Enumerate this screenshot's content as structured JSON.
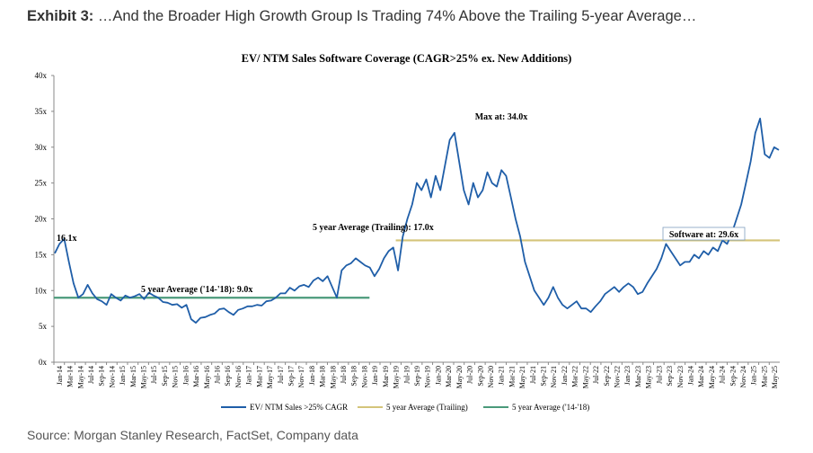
{
  "header": {
    "exhibit_label": "Exhibit 3:",
    "exhibit_text": " …And the Broader High Growth Group Is Trading 74% Above the Trailing 5-year Average…"
  },
  "source": "Source: Morgan Stanley Research, FactSet, Company data",
  "colors": {
    "series": "#1f5ea8",
    "avg_trailing": "#d4c47a",
    "avg_1418": "#4a9a7a"
  },
  "chart_data": {
    "type": "line",
    "title": "EV/ NTM Sales Software Coverage (CAGR>25% ex. New Additions)",
    "y_ticks": [
      "0x",
      "5x",
      "10x",
      "15x",
      "20x",
      "25x",
      "30x",
      "35x",
      "40x"
    ],
    "ylim": [
      0,
      40
    ],
    "x_ticks": [
      "Jan-14",
      "Mar-14",
      "May-14",
      "Jul-14",
      "Sep-14",
      "Nov-14",
      "Jan-15",
      "Mar-15",
      "May-15",
      "Jul-15",
      "Sep-15",
      "Nov-15",
      "Jan-16",
      "Mar-16",
      "May-16",
      "Jul-16",
      "Sep-16",
      "Nov-16",
      "Jan-17",
      "Mar-17",
      "May-17",
      "Jul-17",
      "Sep-17",
      "Nov-17",
      "Jan-18",
      "Mar-18",
      "May-18",
      "Jul-18",
      "Sep-18",
      "Nov-18",
      "Jan-19",
      "Mar-19",
      "May-19",
      "Jul-19",
      "Sep-19",
      "Nov-19",
      "Jan-20",
      "Mar-20",
      "May-20",
      "Jul-20",
      "Sep-20",
      "Nov-20",
      "Jan-21",
      "Mar-21",
      "May-21",
      "Jul-21",
      "Sep-21",
      "Nov-21",
      "Jan-22",
      "Mar-22",
      "May-22",
      "Jul-22",
      "Sep-22",
      "Nov-22",
      "Jan-23",
      "Mar-23",
      "May-23",
      "Jul-23",
      "Sep-23",
      "Nov-23",
      "Jan-24",
      "Mar-24",
      "May-24",
      "Jul-24",
      "Sep-24",
      "Nov-24",
      "Jan-25",
      "Mar-25",
      "May-25"
    ],
    "series": [
      {
        "name": "EV/ NTM Sales >25% CAGR",
        "values": [
          15.2,
          16.5,
          17.2,
          14.0,
          11.0,
          9.0,
          9.5,
          10.8,
          9.6,
          8.8,
          8.5,
          8.0,
          9.5,
          9.0,
          8.6,
          9.3,
          9.0,
          9.2,
          9.5,
          8.8,
          9.7,
          9.3,
          9.0,
          8.4,
          8.3,
          8.0,
          8.1,
          7.6,
          8.0,
          6.0,
          5.5,
          6.2,
          6.3,
          6.6,
          6.8,
          7.4,
          7.5,
          7.0,
          6.6,
          7.3,
          7.5,
          7.8,
          7.8,
          8.0,
          7.9,
          8.5,
          8.6,
          9.0,
          9.6,
          9.6,
          10.4,
          10.0,
          10.6,
          10.8,
          10.5,
          11.4,
          11.8,
          11.3,
          12.0,
          10.5,
          9.0,
          12.8,
          13.5,
          13.8,
          14.5,
          14.0,
          13.5,
          13.2,
          12.0,
          13.0,
          14.5,
          15.5,
          16.0,
          12.8,
          17.5,
          20.0,
          22.0,
          25.0,
          24.0,
          25.5,
          23.0,
          26.0,
          24.0,
          27.5,
          31.0,
          32.0,
          28.0,
          24.0,
          22.0,
          25.0,
          23.0,
          24.0,
          26.5,
          25.0,
          24.5,
          26.8,
          26.0,
          23.0,
          20.0,
          17.5,
          14.0,
          12.0,
          10.0,
          9.0,
          8.0,
          9.0,
          10.5,
          9.0,
          8.0,
          7.5,
          8.0,
          8.5,
          7.5,
          7.5,
          7.0,
          7.8,
          8.5,
          9.5,
          10.0,
          10.5,
          9.8,
          10.5,
          11.0,
          10.5,
          9.5,
          9.8,
          11.0,
          12.0,
          13.0,
          14.5,
          16.5,
          15.5,
          14.5,
          13.5,
          14.0,
          14.0,
          15.0,
          14.5,
          15.5,
          15.0,
          16.0,
          15.5,
          17.0,
          16.5,
          18.0,
          20.0,
          22.0,
          25.0,
          28.0,
          32.0,
          34.0,
          29.0,
          28.5,
          30.0,
          29.6
        ]
      }
    ],
    "reference_lines": [
      {
        "name": "5 year Average (Trailing)",
        "value": 17.0,
        "from": "Jun-19",
        "to": "May-25"
      },
      {
        "name": "5 year Average ('14-'18)",
        "value": 9.0,
        "from": "Jan-14",
        "to": "Dec-18"
      }
    ],
    "annotations": [
      {
        "text": "16.1x"
      },
      {
        "text": "Max at: 34.0x"
      },
      {
        "text": "5 year Average (Trailing): 17.0x"
      },
      {
        "text": "5 year Average ('14-'18): 9.0x"
      },
      {
        "text": "Software at: 29.6x"
      }
    ],
    "legend": [
      {
        "label": "EV/ NTM Sales >25% CAGR"
      },
      {
        "label": "5 year Average (Trailing)"
      },
      {
        "label": "5 year Average ('14-'18)"
      }
    ]
  }
}
